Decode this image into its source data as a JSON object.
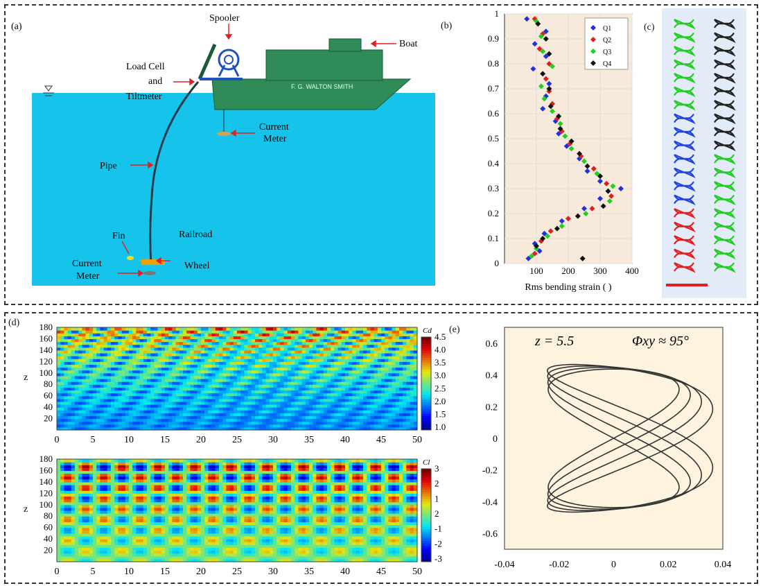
{
  "panels": {
    "a": {
      "label": "(a)",
      "labels": {
        "spooler": "Spooler",
        "boat": "Boat",
        "load_cell_1": "Load Cell",
        "load_cell_2": "and",
        "load_cell_3": "Tiltmeter",
        "ship_name": "F. G. WALTON SMITH",
        "current_meter_top_1": "Current",
        "current_meter_top_2": "Meter",
        "pipe": "Pipe",
        "fin": "Fin",
        "railroad_1": "Railroad",
        "railroad_2": "Wheel",
        "current_meter_bottom_1": "Current",
        "current_meter_bottom_2": "Meter"
      },
      "colors": {
        "water": "#16c3ea",
        "ship": "#2f8b57",
        "arrow": "#e02020"
      }
    },
    "b": {
      "label": "(b)"
    },
    "c": {
      "label": "(c)"
    },
    "d": {
      "label": "(d)"
    },
    "e": {
      "label": "(e)"
    }
  },
  "chart_data": [
    {
      "id": "b",
      "type": "scatter",
      "title": "",
      "xlabel": "Rms bending strain (    )",
      "ylabel": "",
      "xlim": [
        0,
        400
      ],
      "ylim": [
        0,
        1
      ],
      "xticks": [
        100,
        200,
        300,
        400
      ],
      "yticks": [
        0,
        0.1,
        0.2,
        0.3,
        0.4,
        0.5,
        0.6,
        0.7,
        0.8,
        0.9,
        1
      ],
      "legend": "top-right",
      "series": [
        {
          "name": "Q1",
          "color": "#2030e0",
          "points": [
            [
              70,
              0.98
            ],
            [
              130,
              0.93
            ],
            [
              95,
              0.88
            ],
            [
              130,
              0.83
            ],
            [
              90,
              0.78
            ],
            [
              140,
              0.72
            ],
            [
              130,
              0.67
            ],
            [
              120,
              0.62
            ],
            [
              160,
              0.57
            ],
            [
              170,
              0.52
            ],
            [
              195,
              0.47
            ],
            [
              235,
              0.42
            ],
            [
              260,
              0.37
            ],
            [
              300,
              0.33
            ],
            [
              365,
              0.3
            ],
            [
              300,
              0.26
            ],
            [
              250,
              0.22
            ],
            [
              180,
              0.17
            ],
            [
              125,
              0.12
            ],
            [
              95,
              0.08
            ],
            [
              110,
              0.05
            ],
            [
              75,
              0.02
            ]
          ]
        },
        {
          "name": "Q2",
          "color": "#e02020",
          "points": [
            [
              95,
              0.98
            ],
            [
              120,
              0.92
            ],
            [
              110,
              0.86
            ],
            [
              140,
              0.8
            ],
            [
              130,
              0.74
            ],
            [
              140,
              0.69
            ],
            [
              150,
              0.64
            ],
            [
              165,
              0.58
            ],
            [
              180,
              0.53
            ],
            [
              205,
              0.48
            ],
            [
              240,
              0.43
            ],
            [
              280,
              0.38
            ],
            [
              320,
              0.32
            ],
            [
              335,
              0.27
            ],
            [
              275,
              0.22
            ],
            [
              200,
              0.18
            ],
            [
              145,
              0.13
            ],
            [
              115,
              0.09
            ],
            [
              95,
              0.04
            ]
          ]
        },
        {
          "name": "Q3",
          "color": "#20d020",
          "points": [
            [
              100,
              0.97
            ],
            [
              115,
              0.91
            ],
            [
              120,
              0.85
            ],
            [
              150,
              0.79
            ],
            [
              115,
              0.71
            ],
            [
              125,
              0.66
            ],
            [
              150,
              0.61
            ],
            [
              175,
              0.56
            ],
            [
              190,
              0.51
            ],
            [
              210,
              0.46
            ],
            [
              250,
              0.41
            ],
            [
              290,
              0.36
            ],
            [
              340,
              0.31
            ],
            [
              330,
              0.25
            ],
            [
              255,
              0.2
            ],
            [
              180,
              0.15
            ],
            [
              135,
              0.11
            ],
            [
              100,
              0.06
            ],
            [
              85,
              0.03
            ]
          ]
        },
        {
          "name": "Q4",
          "color": "#111111",
          "points": [
            [
              105,
              0.96
            ],
            [
              130,
              0.9
            ],
            [
              140,
              0.84
            ],
            [
              120,
              0.76
            ],
            [
              140,
              0.7
            ],
            [
              145,
              0.63
            ],
            [
              170,
              0.59
            ],
            [
              175,
              0.54
            ],
            [
              210,
              0.49
            ],
            [
              235,
              0.44
            ],
            [
              260,
              0.39
            ],
            [
              300,
              0.35
            ],
            [
              325,
              0.29
            ],
            [
              310,
              0.23
            ],
            [
              230,
              0.19
            ],
            [
              165,
              0.14
            ],
            [
              120,
              0.1
            ],
            [
              100,
              0.07
            ],
            [
              245,
              0.02
            ]
          ]
        }
      ]
    },
    {
      "id": "d-top",
      "type": "heatmap",
      "title": "",
      "ylabel": "z",
      "xlim": [
        0,
        50
      ],
      "ylim": [
        0,
        180
      ],
      "xticks": [
        0,
        5,
        10,
        15,
        20,
        25,
        30,
        35,
        40,
        45,
        50
      ],
      "yticks": [
        20,
        40,
        60,
        80,
        100,
        120,
        140,
        160,
        180
      ],
      "colorbar_label": "Cd",
      "colorbar_ticks": [
        "4.5",
        "4.0",
        "3.5",
        "3.0",
        "2.5",
        "2.0",
        "1.5",
        "1.0"
      ]
    },
    {
      "id": "d-bottom",
      "type": "heatmap",
      "title": "",
      "ylabel": "z",
      "xlim": [
        0,
        50
      ],
      "ylim": [
        0,
        180
      ],
      "xticks": [
        0,
        5,
        10,
        15,
        20,
        25,
        30,
        35,
        40,
        45,
        50
      ],
      "yticks": [
        20,
        40,
        60,
        80,
        100,
        120,
        140,
        160,
        180
      ],
      "colorbar_label": "Cl",
      "colorbar_ticks": [
        "3",
        "2",
        "1",
        "2",
        "-1",
        "-2",
        "-3"
      ]
    },
    {
      "id": "e",
      "type": "line",
      "title": "",
      "annotation_z": "z = 5.5",
      "annotation_phi": "Φxy ≈ 95°",
      "xlim": [
        -0.04,
        0.04
      ],
      "ylim": [
        -0.7,
        0.7
      ],
      "xticks": [
        "-0.04",
        "-0.02",
        "0",
        "0.02",
        "0.04"
      ],
      "yticks": [
        "0.6",
        "0.4",
        "0.2",
        "0",
        "-0.2",
        "-0.4",
        "-0.6"
      ],
      "curve": {
        "shape": "figure-eight",
        "x_amplitude": 0.03,
        "y_amplitude": 0.47,
        "loops": 4
      }
    }
  ]
}
